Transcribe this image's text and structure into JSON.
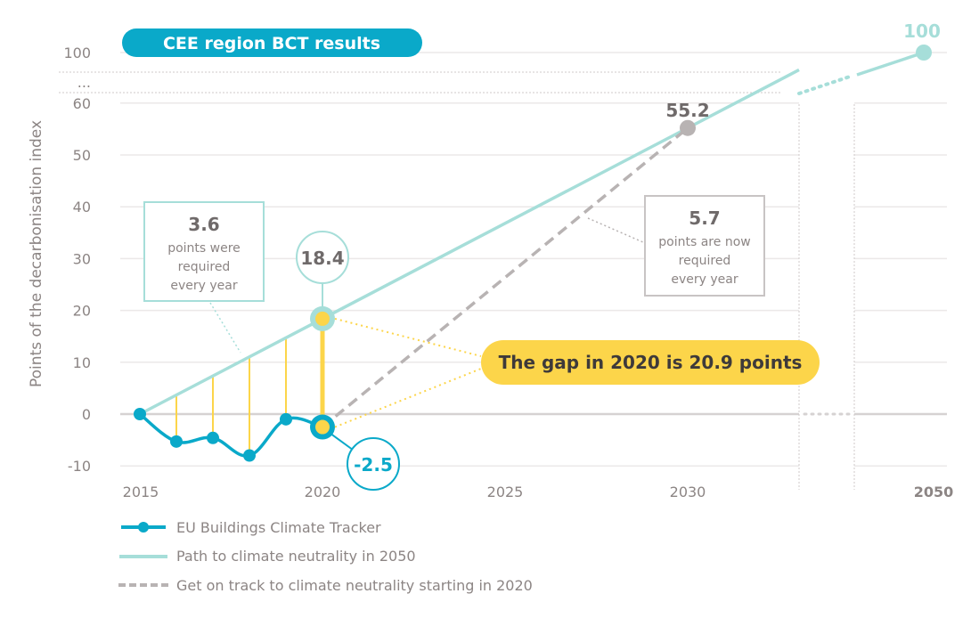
{
  "chart_data": {
    "type": "line",
    "title": "CEE region BCT results",
    "xlabel": "",
    "ylabel": "Points of the decarbonisation index",
    "x_ticks": [
      "2015",
      "2020",
      "2025",
      "2030",
      "2050"
    ],
    "y_ticks": [
      "100",
      "...",
      "60",
      "50",
      "40",
      "30",
      "20",
      "10",
      "0",
      "-10"
    ],
    "ylim": [
      -10,
      100
    ],
    "xlim": [
      2015,
      2050
    ],
    "axis_break": {
      "y_between": [
        60,
        100
      ],
      "x_between": [
        2030,
        2050
      ]
    },
    "grid": true,
    "series": [
      {
        "name": "EU Buildings Climate Tracker",
        "style": "solid-marker",
        "color": "#0aa9c9",
        "x": [
          2015,
          2016,
          2017,
          2018,
          2019,
          2020
        ],
        "values": [
          0,
          -5.3,
          -4.6,
          -8.0,
          -1.0,
          -2.5
        ]
      },
      {
        "name": "Path to climate neutrality in 2050",
        "style": "solid",
        "color": "#a6ded9",
        "x": [
          2015,
          2020,
          2030,
          2050
        ],
        "values": [
          0,
          18.4,
          55.2,
          100
        ]
      },
      {
        "name": "Get on track to climate neutrality starting in 2020",
        "style": "dashed",
        "color": "#b8b3b3",
        "x": [
          2020,
          2030
        ],
        "values": [
          -2.5,
          55.2
        ]
      }
    ],
    "gap_bars": {
      "color": "#fcd54a",
      "x": [
        2016,
        2017,
        2018,
        2019,
        2020
      ],
      "top": [
        3.7,
        7.3,
        11.0,
        14.7,
        18.4
      ]
    },
    "annotations": {
      "value_2020_path": "18.4",
      "value_2020_tracker": "-2.5",
      "value_2030": "55.2",
      "value_2050": "100",
      "box_left_value": "3.6",
      "box_left_lines": [
        "points were",
        "required",
        "every year"
      ],
      "box_right_value": "5.7",
      "box_right_lines": [
        "points are now",
        "required",
        "every year"
      ],
      "gap_label": "The gap in 2020 is 20.9 points"
    },
    "legend": {
      "placement": "bottom-left",
      "entries": [
        "EU Buildings Climate Tracker",
        "Path to climate neutrality in 2050",
        "Get on track to climate neutrality starting in 2020"
      ]
    },
    "colors": {
      "tracker": "#0aa9c9",
      "path": "#a6ded9",
      "ontrack": "#b8b3b3",
      "gap": "#fcd54a",
      "title_bg": "#0aa9c9",
      "grid": "#ebe8e8",
      "zero": "#d6d2d2",
      "text": "#8c8584"
    }
  }
}
